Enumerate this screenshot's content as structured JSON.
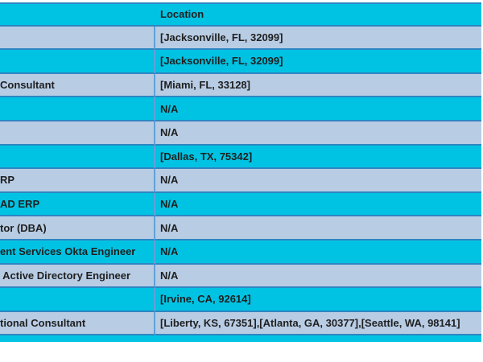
{
  "table": {
    "columns": [
      {
        "label": ""
      },
      {
        "label": "Location"
      }
    ],
    "rows": [
      {
        "title": "",
        "location": "[Jacksonville, FL, 32099]"
      },
      {
        "title": "",
        "location": "[Jacksonville, FL, 32099]"
      },
      {
        "title": "Consultant",
        "location": "[Miami, FL, 33128]"
      },
      {
        "title": "",
        "location": "N/A"
      },
      {
        "title": "",
        "location": "N/A"
      },
      {
        "title": "",
        "location": "[Dallas, TX, 75342]"
      },
      {
        "title": "RP",
        "location": "N/A"
      },
      {
        "title": "AD ERP",
        "location": "N/A"
      },
      {
        "title": "tor (DBA)",
        "location": "N/A"
      },
      {
        "title": "ent Services Okta Engineer",
        "location": "N/A"
      },
      {
        "title": " Active Directory Engineer",
        "location": "N/A"
      },
      {
        "title": "",
        "location": "[Irvine, CA, 92614]"
      },
      {
        "title": "tional Consultant",
        "location": "[Liberty, KS, 67351],[Atlanta, GA, 30377],[Seattle, WA, 98141]"
      }
    ]
  },
  "colors": {
    "row_cyan": "#00c3e3",
    "row_light_blue": "#b8cce4",
    "border_horizontal": "#2e86c1",
    "border_vertical": "#62a0d8",
    "text": "#1f1f1f",
    "background": "#ffffff"
  }
}
